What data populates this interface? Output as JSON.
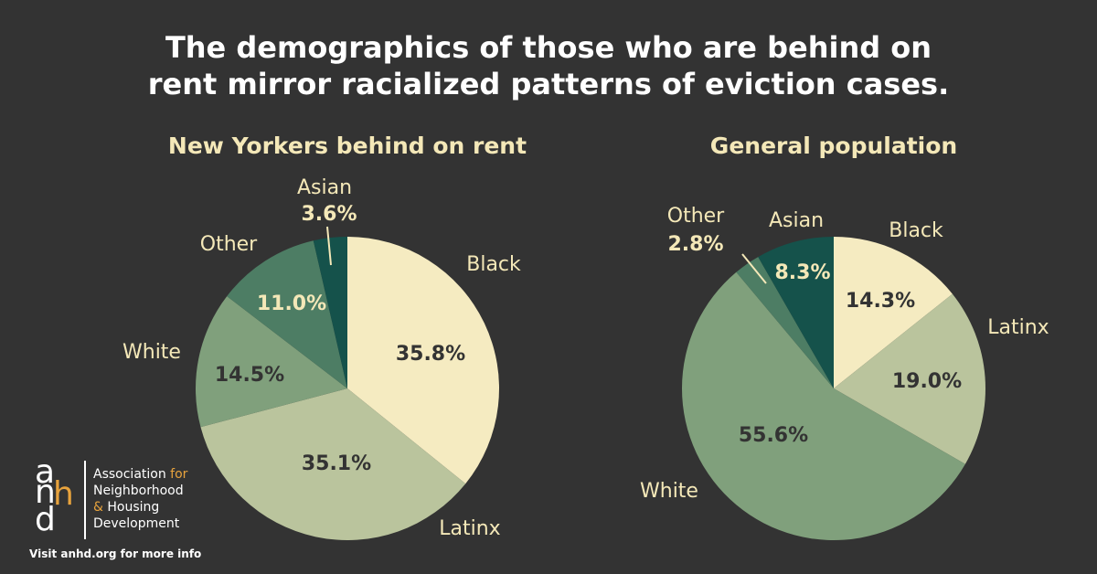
{
  "title": {
    "line1": "The demographics of those who are behind on",
    "line2": "rent mirror racialized patterns of eviction cases."
  },
  "colors": {
    "background": "#333333",
    "title": "#ffffff",
    "subtitle": "#f4e8b8",
    "label": "#f4e8b8",
    "Black": "#f5ebc1",
    "Latinx": "#bac49d",
    "White": "#80a07c",
    "Other": "#4d7d64",
    "Asian": "#15524b",
    "dark_text": "#333333",
    "light_text": "#f4e8b8",
    "accent": "#e8a33d"
  },
  "chart_data": [
    {
      "type": "pie",
      "title": "New Yorkers behind on rent",
      "slices": [
        {
          "label": "Black",
          "value": 35.8,
          "value_label": "35.8%"
        },
        {
          "label": "Latinx",
          "value": 35.1,
          "value_label": "35.1%"
        },
        {
          "label": "White",
          "value": 14.5,
          "value_label": "14.5%"
        },
        {
          "label": "Other",
          "value": 11.0,
          "value_label": "11.0%"
        },
        {
          "label": "Asian",
          "value": 3.6,
          "value_label": "3.6%"
        }
      ],
      "legend": "none"
    },
    {
      "type": "pie",
      "title": "General population",
      "slices": [
        {
          "label": "Black",
          "value": 14.3,
          "value_label": "14.3%"
        },
        {
          "label": "Latinx",
          "value": 19.0,
          "value_label": "19.0%"
        },
        {
          "label": "White",
          "value": 55.6,
          "value_label": "55.6%"
        },
        {
          "label": "Other",
          "value": 2.8,
          "value_label": "2.8%"
        },
        {
          "label": "Asian",
          "value": 8.3,
          "value_label": "8.3%"
        }
      ],
      "legend": "none"
    }
  ],
  "logo": {
    "letters": [
      "a",
      "n",
      "h",
      "d"
    ],
    "org_line1": "Association",
    "org_line1_accent": "for",
    "org_line2": "Neighborhood",
    "org_line3_accent": "&",
    "org_line3": "Housing",
    "org_line4": "Development"
  },
  "footer": "Visit anhd.org for more info"
}
